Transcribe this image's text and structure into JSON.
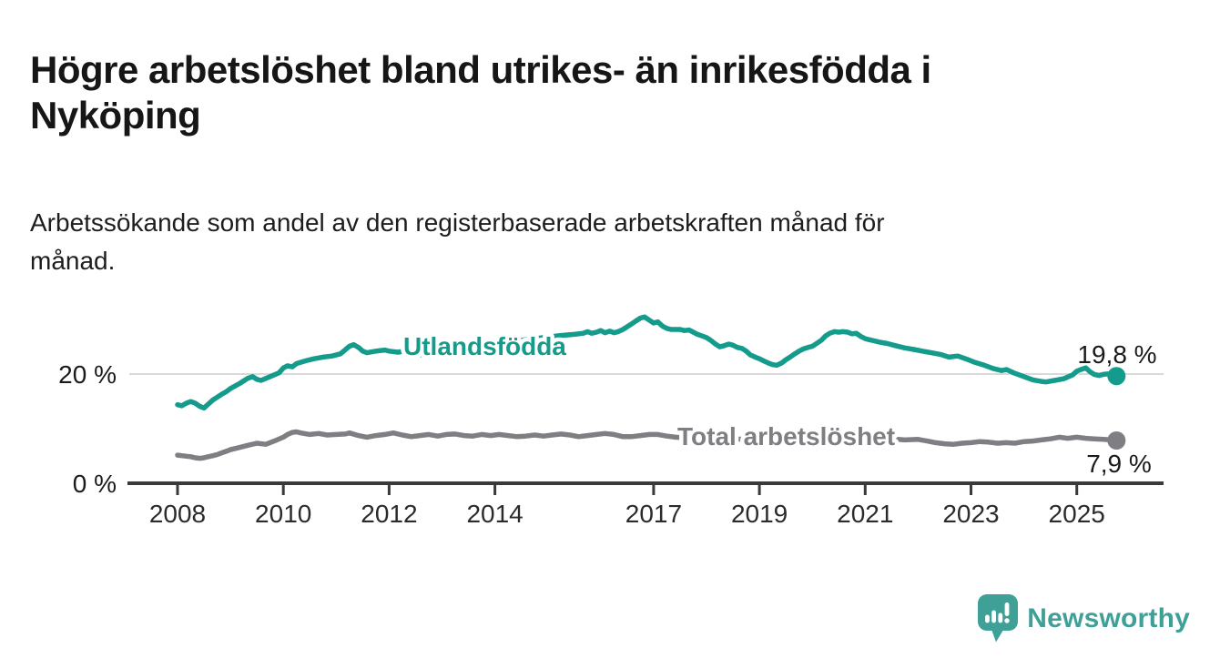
{
  "title": {
    "line1": "Högre arbetslöshet bland utrikes- än inrikesfödda i",
    "line2": "Nyköping"
  },
  "subtitle": {
    "line1": "Arbetssökande som andel av den registerbaserade arbetskraften månad för",
    "line2": "månad."
  },
  "chart_data": {
    "type": "line",
    "title": "Högre arbetslöshet bland utrikes- än inrikesfödda i Nyköping",
    "subtitle": "Arbetssökande som andel av den registerbaserade arbetskraften månad för månad.",
    "xlabel": "",
    "ylabel": "",
    "grid": "single horizontal gridline at 20 %",
    "legend_position": "inline labels on lines",
    "x_axis": {
      "tick_labels": [
        "2008",
        "2010",
        "2012",
        "2014",
        "2017",
        "2019",
        "2021",
        "2023",
        "2025"
      ],
      "tick_years": [
        2008,
        2010,
        2012,
        2014,
        2017,
        2019,
        2021,
        2023,
        2025
      ],
      "range": [
        2007.1,
        2026.6
      ]
    },
    "y_axis": {
      "ticks": [
        {
          "value": 0,
          "label": "0 %"
        },
        {
          "value": 20,
          "label": "20 %"
        }
      ],
      "range": [
        0,
        33
      ]
    },
    "series": [
      {
        "name": "Utlandsfödda",
        "color": "#149B8C",
        "end_value": 19.8,
        "end_value_label": "19,8 %",
        "points": [
          [
            2008.0,
            14.5
          ],
          [
            2008.08,
            14.3
          ],
          [
            2008.17,
            14.8
          ],
          [
            2008.25,
            15.1
          ],
          [
            2008.33,
            14.8
          ],
          [
            2008.42,
            14.2
          ],
          [
            2008.5,
            13.9
          ],
          [
            2008.58,
            14.6
          ],
          [
            2008.67,
            15.4
          ],
          [
            2008.75,
            15.9
          ],
          [
            2008.83,
            16.4
          ],
          [
            2008.92,
            16.9
          ],
          [
            2009.0,
            17.5
          ],
          [
            2009.17,
            18.4
          ],
          [
            2009.33,
            19.4
          ],
          [
            2009.42,
            19.7
          ],
          [
            2009.5,
            19.2
          ],
          [
            2009.58,
            19.0
          ],
          [
            2009.75,
            19.7
          ],
          [
            2009.92,
            20.4
          ],
          [
            2010.0,
            21.3
          ],
          [
            2010.08,
            21.7
          ],
          [
            2010.17,
            21.5
          ],
          [
            2010.25,
            22.1
          ],
          [
            2010.42,
            22.6
          ],
          [
            2010.58,
            23.0
          ],
          [
            2010.75,
            23.3
          ],
          [
            2010.92,
            23.5
          ],
          [
            2011.08,
            23.9
          ],
          [
            2011.25,
            25.3
          ],
          [
            2011.33,
            25.6
          ],
          [
            2011.42,
            25.1
          ],
          [
            2011.5,
            24.4
          ],
          [
            2011.58,
            24.1
          ],
          [
            2011.75,
            24.4
          ],
          [
            2011.92,
            24.6
          ],
          [
            2012.0,
            24.4
          ],
          [
            2012.17,
            24.2
          ],
          [
            2012.33,
            24.5
          ],
          [
            2012.5,
            23.8
          ],
          [
            2012.67,
            23.7
          ],
          [
            2012.83,
            24.0
          ],
          [
            2013.0,
            24.3
          ],
          [
            2013.25,
            24.6
          ],
          [
            2013.5,
            24.8
          ],
          [
            2013.75,
            25.1
          ],
          [
            2014.0,
            25.5
          ],
          [
            2014.25,
            26.0
          ],
          [
            2014.5,
            26.4
          ],
          [
            2014.75,
            26.7
          ],
          [
            2015.0,
            27.0
          ],
          [
            2015.25,
            27.3
          ],
          [
            2015.5,
            27.5
          ],
          [
            2015.67,
            27.7
          ],
          [
            2015.75,
            28.0
          ],
          [
            2015.83,
            27.7
          ],
          [
            2015.92,
            27.9
          ],
          [
            2016.0,
            28.2
          ],
          [
            2016.08,
            27.8
          ],
          [
            2016.17,
            28.1
          ],
          [
            2016.25,
            27.8
          ],
          [
            2016.33,
            28.0
          ],
          [
            2016.42,
            28.4
          ],
          [
            2016.5,
            28.9
          ],
          [
            2016.58,
            29.4
          ],
          [
            2016.67,
            30.0
          ],
          [
            2016.75,
            30.5
          ],
          [
            2016.83,
            30.7
          ],
          [
            2016.92,
            30.1
          ],
          [
            2017.0,
            29.6
          ],
          [
            2017.08,
            29.8
          ],
          [
            2017.17,
            29.0
          ],
          [
            2017.25,
            28.6
          ],
          [
            2017.33,
            28.4
          ],
          [
            2017.5,
            28.4
          ],
          [
            2017.58,
            28.2
          ],
          [
            2017.67,
            28.3
          ],
          [
            2017.75,
            27.9
          ],
          [
            2017.83,
            27.5
          ],
          [
            2017.92,
            27.2
          ],
          [
            2018.0,
            26.9
          ],
          [
            2018.08,
            26.4
          ],
          [
            2018.17,
            25.7
          ],
          [
            2018.25,
            25.2
          ],
          [
            2018.33,
            25.4
          ],
          [
            2018.42,
            25.7
          ],
          [
            2018.5,
            25.5
          ],
          [
            2018.58,
            25.1
          ],
          [
            2018.67,
            24.9
          ],
          [
            2018.75,
            24.4
          ],
          [
            2018.83,
            23.7
          ],
          [
            2018.92,
            23.3
          ],
          [
            2019.0,
            23.0
          ],
          [
            2019.08,
            22.6
          ],
          [
            2019.17,
            22.2
          ],
          [
            2019.25,
            21.9
          ],
          [
            2019.33,
            21.8
          ],
          [
            2019.42,
            22.2
          ],
          [
            2019.5,
            22.8
          ],
          [
            2019.58,
            23.3
          ],
          [
            2019.67,
            23.9
          ],
          [
            2019.75,
            24.4
          ],
          [
            2019.83,
            24.8
          ],
          [
            2019.92,
            25.1
          ],
          [
            2020.0,
            25.3
          ],
          [
            2020.08,
            25.8
          ],
          [
            2020.17,
            26.4
          ],
          [
            2020.25,
            27.2
          ],
          [
            2020.33,
            27.7
          ],
          [
            2020.42,
            28.0
          ],
          [
            2020.5,
            27.9
          ],
          [
            2020.58,
            28.0
          ],
          [
            2020.67,
            27.9
          ],
          [
            2020.75,
            27.6
          ],
          [
            2020.83,
            27.7
          ],
          [
            2020.92,
            27.1
          ],
          [
            2021.0,
            26.7
          ],
          [
            2021.08,
            26.5
          ],
          [
            2021.17,
            26.3
          ],
          [
            2021.25,
            26.1
          ],
          [
            2021.42,
            25.8
          ],
          [
            2021.58,
            25.4
          ],
          [
            2021.75,
            25.0
          ],
          [
            2021.92,
            24.7
          ],
          [
            2022.08,
            24.4
          ],
          [
            2022.25,
            24.1
          ],
          [
            2022.42,
            23.8
          ],
          [
            2022.58,
            23.3
          ],
          [
            2022.75,
            23.5
          ],
          [
            2022.92,
            22.9
          ],
          [
            2023.08,
            22.3
          ],
          [
            2023.25,
            21.8
          ],
          [
            2023.42,
            21.2
          ],
          [
            2023.58,
            20.8
          ],
          [
            2023.67,
            21.0
          ],
          [
            2023.83,
            20.3
          ],
          [
            2024.0,
            19.7
          ],
          [
            2024.17,
            19.1
          ],
          [
            2024.33,
            18.8
          ],
          [
            2024.42,
            18.7
          ],
          [
            2024.58,
            19.0
          ],
          [
            2024.75,
            19.3
          ],
          [
            2024.92,
            20.0
          ],
          [
            2025.0,
            20.7
          ],
          [
            2025.08,
            21.0
          ],
          [
            2025.17,
            21.3
          ],
          [
            2025.25,
            20.6
          ],
          [
            2025.33,
            20.1
          ],
          [
            2025.42,
            19.9
          ],
          [
            2025.5,
            20.1
          ],
          [
            2025.58,
            20.2
          ],
          [
            2025.67,
            19.9
          ],
          [
            2025.75,
            19.8
          ]
        ]
      },
      {
        "name": "Total arbetslöshet",
        "color": "#7E7E83",
        "end_value": 7.9,
        "end_value_label": "7,9 %",
        "points": [
          [
            2008.0,
            5.2
          ],
          [
            2008.08,
            5.1
          ],
          [
            2008.17,
            5.0
          ],
          [
            2008.25,
            4.9
          ],
          [
            2008.33,
            4.7
          ],
          [
            2008.42,
            4.6
          ],
          [
            2008.5,
            4.7
          ],
          [
            2008.58,
            4.9
          ],
          [
            2008.67,
            5.1
          ],
          [
            2008.75,
            5.3
          ],
          [
            2008.83,
            5.6
          ],
          [
            2008.92,
            5.9
          ],
          [
            2009.0,
            6.2
          ],
          [
            2009.17,
            6.6
          ],
          [
            2009.33,
            7.0
          ],
          [
            2009.5,
            7.4
          ],
          [
            2009.67,
            7.2
          ],
          [
            2009.83,
            7.8
          ],
          [
            2010.0,
            8.5
          ],
          [
            2010.08,
            9.0
          ],
          [
            2010.17,
            9.4
          ],
          [
            2010.25,
            9.5
          ],
          [
            2010.33,
            9.3
          ],
          [
            2010.5,
            9.0
          ],
          [
            2010.67,
            9.2
          ],
          [
            2010.83,
            8.9
          ],
          [
            2011.0,
            9.0
          ],
          [
            2011.17,
            9.1
          ],
          [
            2011.25,
            9.3
          ],
          [
            2011.42,
            8.8
          ],
          [
            2011.58,
            8.5
          ],
          [
            2011.75,
            8.8
          ],
          [
            2011.92,
            9.0
          ],
          [
            2012.08,
            9.3
          ],
          [
            2012.25,
            8.9
          ],
          [
            2012.42,
            8.6
          ],
          [
            2012.58,
            8.8
          ],
          [
            2012.75,
            9.0
          ],
          [
            2012.92,
            8.7
          ],
          [
            2013.08,
            9.0
          ],
          [
            2013.25,
            9.1
          ],
          [
            2013.42,
            8.8
          ],
          [
            2013.58,
            8.7
          ],
          [
            2013.75,
            9.0
          ],
          [
            2013.92,
            8.8
          ],
          [
            2014.08,
            9.0
          ],
          [
            2014.25,
            8.8
          ],
          [
            2014.42,
            8.6
          ],
          [
            2014.58,
            8.7
          ],
          [
            2014.75,
            8.9
          ],
          [
            2014.92,
            8.7
          ],
          [
            2015.08,
            8.9
          ],
          [
            2015.25,
            9.1
          ],
          [
            2015.42,
            8.9
          ],
          [
            2015.58,
            8.6
          ],
          [
            2015.75,
            8.8
          ],
          [
            2015.92,
            9.0
          ],
          [
            2016.08,
            9.2
          ],
          [
            2016.25,
            9.0
          ],
          [
            2016.42,
            8.6
          ],
          [
            2016.58,
            8.6
          ],
          [
            2016.75,
            8.8
          ],
          [
            2016.92,
            9.0
          ],
          [
            2017.08,
            9.0
          ],
          [
            2017.25,
            8.7
          ],
          [
            2017.42,
            8.5
          ],
          [
            2017.58,
            8.4
          ],
          [
            2017.75,
            8.5
          ],
          [
            2018.0,
            8.4
          ],
          [
            2018.25,
            8.3
          ],
          [
            2018.5,
            8.2
          ],
          [
            2018.75,
            8.1
          ],
          [
            2019.0,
            8.0
          ],
          [
            2019.25,
            8.0
          ],
          [
            2019.5,
            8.1
          ],
          [
            2019.75,
            8.3
          ],
          [
            2020.0,
            8.4
          ],
          [
            2020.25,
            8.8
          ],
          [
            2020.5,
            9.0
          ],
          [
            2020.75,
            8.8
          ],
          [
            2021.0,
            8.6
          ],
          [
            2021.25,
            8.4
          ],
          [
            2021.5,
            8.2
          ],
          [
            2021.75,
            8.0
          ],
          [
            2022.0,
            8.1
          ],
          [
            2022.17,
            7.8
          ],
          [
            2022.33,
            7.5
          ],
          [
            2022.5,
            7.3
          ],
          [
            2022.67,
            7.2
          ],
          [
            2022.83,
            7.4
          ],
          [
            2023.0,
            7.5
          ],
          [
            2023.17,
            7.7
          ],
          [
            2023.33,
            7.6
          ],
          [
            2023.5,
            7.4
          ],
          [
            2023.67,
            7.5
          ],
          [
            2023.83,
            7.4
          ],
          [
            2024.0,
            7.7
          ],
          [
            2024.17,
            7.8
          ],
          [
            2024.33,
            8.0
          ],
          [
            2024.5,
            8.2
          ],
          [
            2024.67,
            8.5
          ],
          [
            2024.83,
            8.3
          ],
          [
            2025.0,
            8.5
          ],
          [
            2025.17,
            8.3
          ],
          [
            2025.33,
            8.2
          ],
          [
            2025.5,
            8.1
          ],
          [
            2025.67,
            8.0
          ],
          [
            2025.75,
            7.9
          ]
        ]
      }
    ]
  },
  "branding": {
    "logo_text": "Newsworthy",
    "logo_color": "#3EA096"
  },
  "colors": {
    "series_teal": "#149B8C",
    "series_gray": "#7E7E83",
    "axis": "#3A3A3A",
    "gridline": "#D9D9D9",
    "text": "#1A1A1A"
  }
}
